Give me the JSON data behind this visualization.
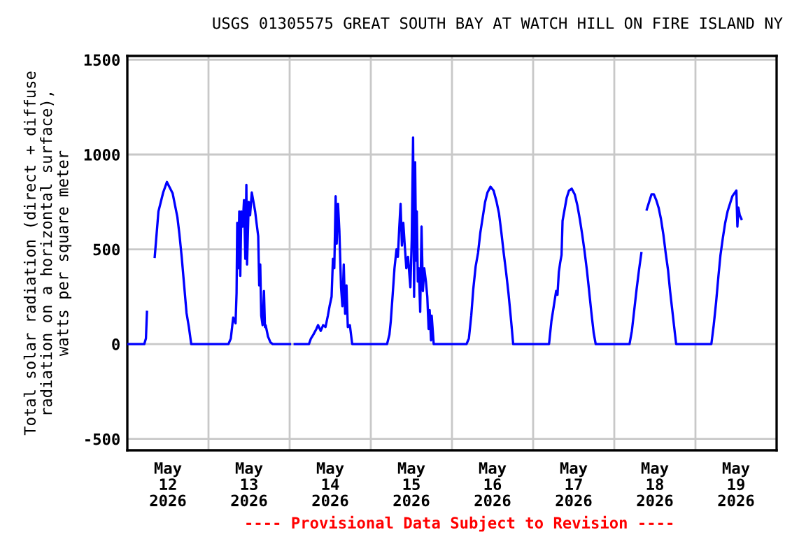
{
  "chart_data": {
    "type": "line",
    "title": "USGS 01305575 GREAT SOUTH BAY AT WATCH HILL ON FIRE ISLAND NY",
    "ylabel": "Total solar radiation (direct + diffuse\nradiation on a horizontal surface),\nwatts per square meter",
    "annotations": [
      "---- Provisional Data Subject to Revision ----"
    ],
    "series": [
      {
        "color": "#0000ff",
        "x": [
          "2026-05-12T00:00",
          "2026-05-12T05:00",
          "2026-05-12T05:30",
          "2026-05-12T05:48",
          "2026-05-12T07:00",
          "2026-05-12T08:06",
          "2026-05-12T09:12",
          "2026-05-12T10:36",
          "2026-05-12T11:42",
          "2026-05-12T13:24",
          "2026-05-12T14:48",
          "2026-05-12T15:24",
          "2026-05-12T16:06",
          "2026-05-12T16:48",
          "2026-05-12T17:30",
          "2026-05-12T18:12",
          "2026-05-12T18:54",
          "2026-05-13T05:54",
          "2026-05-13T06:36",
          "2026-05-13T07:18",
          "2026-05-13T08:00",
          "2026-05-13T08:18",
          "2026-05-13T08:30",
          "2026-05-13T08:48",
          "2026-05-13T09:06",
          "2026-05-13T09:24",
          "2026-05-13T09:42",
          "2026-05-13T10:06",
          "2026-05-13T10:30",
          "2026-05-13T10:54",
          "2026-05-13T11:12",
          "2026-05-13T11:24",
          "2026-05-13T11:54",
          "2026-05-13T12:18",
          "2026-05-13T12:48",
          "2026-05-13T13:12",
          "2026-05-13T13:48",
          "2026-05-13T14:12",
          "2026-05-13T14:42",
          "2026-05-13T15:00",
          "2026-05-13T15:18",
          "2026-05-13T15:36",
          "2026-05-13T16:00",
          "2026-05-13T16:24",
          "2026-05-13T16:42",
          "2026-05-13T16:54",
          "2026-05-13T17:36",
          "2026-05-13T18:18",
          "2026-05-13T19:00",
          "2026-05-14T00:06",
          "2026-05-14T00:48",
          "2026-05-14T01:30",
          "2026-05-14T05:42",
          "2026-05-14T06:18",
          "2026-05-14T07:00",
          "2026-05-14T07:54",
          "2026-05-14T08:24",
          "2026-05-14T09:12",
          "2026-05-14T09:54",
          "2026-05-14T10:36",
          "2026-05-14T11:18",
          "2026-05-14T11:48",
          "2026-05-14T12:24",
          "2026-05-14T12:48",
          "2026-05-14T13:12",
          "2026-05-14T13:36",
          "2026-05-14T13:54",
          "2026-05-14T14:18",
          "2026-05-14T14:42",
          "2026-05-14T15:12",
          "2026-05-14T15:36",
          "2026-05-14T16:00",
          "2026-05-14T16:24",
          "2026-05-14T16:48",
          "2026-05-14T17:12",
          "2026-05-14T17:48",
          "2026-05-14T18:30",
          "2026-05-15T04:48",
          "2026-05-15T05:30",
          "2026-05-15T05:54",
          "2026-05-15T06:30",
          "2026-05-15T07:00",
          "2026-05-15T07:36",
          "2026-05-15T08:00",
          "2026-05-15T08:24",
          "2026-05-15T08:48",
          "2026-05-15T09:12",
          "2026-05-15T09:36",
          "2026-05-15T10:00",
          "2026-05-15T10:30",
          "2026-05-15T11:00",
          "2026-05-15T11:42",
          "2026-05-15T12:06",
          "2026-05-15T12:30",
          "2026-05-15T12:48",
          "2026-05-15T13:06",
          "2026-05-15T13:24",
          "2026-05-15T13:36",
          "2026-05-15T13:54",
          "2026-05-15T14:12",
          "2026-05-15T14:36",
          "2026-05-15T15:00",
          "2026-05-15T15:24",
          "2026-05-15T15:48",
          "2026-05-15T16:18",
          "2026-05-15T16:42",
          "2026-05-15T17:06",
          "2026-05-15T17:24",
          "2026-05-15T17:48",
          "2026-05-15T18:00",
          "2026-05-15T18:36",
          "2026-05-16T04:18",
          "2026-05-16T05:00",
          "2026-05-16T05:42",
          "2026-05-16T06:18",
          "2026-05-16T07:00",
          "2026-05-16T07:42",
          "2026-05-16T08:24",
          "2026-05-16T09:06",
          "2026-05-16T09:48",
          "2026-05-16T10:30",
          "2026-05-16T11:24",
          "2026-05-16T12:18",
          "2026-05-16T13:12",
          "2026-05-16T13:54",
          "2026-05-16T14:36",
          "2026-05-16T15:18",
          "2026-05-16T16:00",
          "2026-05-16T16:42",
          "2026-05-16T17:24",
          "2026-05-16T18:06",
          "2026-05-17T04:42",
          "2026-05-17T05:24",
          "2026-05-17T06:06",
          "2026-05-17T06:48",
          "2026-05-17T07:12",
          "2026-05-17T07:36",
          "2026-05-17T08:00",
          "2026-05-17T08:24",
          "2026-05-17T08:42",
          "2026-05-17T09:12",
          "2026-05-17T09:54",
          "2026-05-17T10:36",
          "2026-05-17T11:24",
          "2026-05-17T12:18",
          "2026-05-17T13:06",
          "2026-05-17T13:48",
          "2026-05-17T14:30",
          "2026-05-17T15:12",
          "2026-05-17T15:54",
          "2026-05-17T16:30",
          "2026-05-17T17:12",
          "2026-05-17T17:54",
          "2026-05-17T18:30",
          "2026-05-18T04:30",
          "2026-05-18T05:12",
          "2026-05-18T05:54",
          "2026-05-18T06:36",
          "2026-05-18T07:18",
          "2026-05-18T08:00",
          "2026-05-18T08:48",
          "2026-05-18T09:36",
          "2026-05-18T10:18",
          "2026-05-18T11:00",
          "2026-05-18T11:42",
          "2026-05-18T12:24",
          "2026-05-18T13:06",
          "2026-05-18T13:48",
          "2026-05-18T14:30",
          "2026-05-18T15:12",
          "2026-05-18T15:54",
          "2026-05-18T16:30",
          "2026-05-18T17:12",
          "2026-05-18T17:54",
          "2026-05-18T18:18",
          "2026-05-19T04:42",
          "2026-05-19T05:24",
          "2026-05-19T06:06",
          "2026-05-19T06:48",
          "2026-05-19T07:24",
          "2026-05-19T08:06",
          "2026-05-19T08:48",
          "2026-05-19T09:30",
          "2026-05-19T10:12",
          "2026-05-19T10:54",
          "2026-05-19T11:42",
          "2026-05-19T12:06",
          "2026-05-19T12:24",
          "2026-05-19T12:42",
          "2026-05-19T13:06",
          "2026-05-19T13:36"
        ],
        "values": [
          0,
          0,
          30,
          170,
          null,
          460,
          700,
          800,
          855,
          795,
          670,
          580,
          455,
          310,
          165,
          90,
          0,
          0,
          30,
          140,
          110,
          270,
          640,
          400,
          700,
          360,
          700,
          620,
          760,
          450,
          840,
          420,
          750,
          680,
          800,
          760,
          700,
          640,
          570,
          310,
          420,
          150,
          100,
          280,
          90,
          100,
          40,
          10,
          0,
          0,
          null,
          0,
          0,
          30,
          50,
          80,
          100,
          70,
          100,
          90,
          150,
          200,
          250,
          450,
          400,
          780,
          530,
          740,
          600,
          300,
          200,
          420,
          160,
          310,
          90,
          100,
          0,
          0,
          50,
          120,
          270,
          400,
          500,
          460,
          610,
          740,
          520,
          640,
          530,
          400,
          460,
          300,
          550,
          1090,
          250,
          960,
          440,
          700,
          330,
          400,
          170,
          620,
          280,
          400,
          330,
          250,
          80,
          180,
          20,
          150,
          0,
          0,
          30,
          150,
          290,
          410,
          480,
          590,
          670,
          750,
          800,
          830,
          810,
          750,
          690,
          590,
          480,
          380,
          270,
          140,
          0,
          0,
          120,
          200,
          280,
          260,
          380,
          430,
          470,
          650,
          700,
          770,
          810,
          820,
          790,
          730,
          660,
          580,
          490,
          390,
          290,
          170,
          60,
          0,
          0,
          70,
          180,
          290,
          390,
          480,
          null,
          710,
          750,
          790,
          790,
          760,
          720,
          660,
          580,
          480,
          390,
          280,
          170,
          60,
          0,
          0,
          100,
          220,
          360,
          470,
          560,
          640,
          700,
          740,
          780,
          800,
          810,
          620,
          720,
          680,
          660
        ]
      }
    ],
    "xlim": [
      "2026-05-12T00:00",
      "2026-05-20T00:00"
    ],
    "xticks": [
      {
        "value": "2026-05-12T12:00",
        "label": "May\n12\n2026"
      },
      {
        "value": "2026-05-13T12:00",
        "label": "May\n13\n2026"
      },
      {
        "value": "2026-05-14T12:00",
        "label": "May\n14\n2026"
      },
      {
        "value": "2026-05-15T12:00",
        "label": "May\n15\n2026"
      },
      {
        "value": "2026-05-16T12:00",
        "label": "May\n16\n2026"
      },
      {
        "value": "2026-05-17T12:00",
        "label": "May\n17\n2026"
      },
      {
        "value": "2026-05-18T12:00",
        "label": "May\n18\n2026"
      },
      {
        "value": "2026-05-19T12:00",
        "label": "May\n19\n2026"
      },
      {
        "value": "2026-05-13T00:00",
        "label": null
      },
      {
        "value": "2026-05-14T00:00",
        "label": null
      },
      {
        "value": "2026-05-15T00:00",
        "label": null
      },
      {
        "value": "2026-05-16T00:00",
        "label": null
      },
      {
        "value": "2026-05-17T00:00",
        "label": null
      },
      {
        "value": "2026-05-18T00:00",
        "label": null
      },
      {
        "value": "2026-05-19T00:00",
        "label": null
      }
    ],
    "ylim": [
      -560,
      1520
    ],
    "yticks": [
      1500,
      1000,
      500,
      0,
      -500
    ],
    "grid": true,
    "legend": false,
    "marker": "none",
    "line_style": "solid"
  }
}
